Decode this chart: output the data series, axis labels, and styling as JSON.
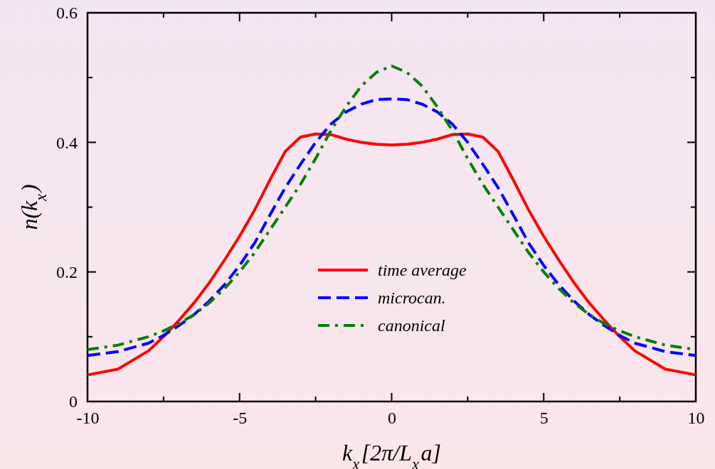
{
  "chart_data": {
    "type": "line",
    "xlabel": "k$_{x}$[2π/L$_{x}$a]",
    "ylabel": "n(k$_{x}$)",
    "xlim": [
      -10,
      10
    ],
    "xticks": [
      -10,
      {
        "value": -7.5,
        "label": null
      },
      -5,
      {
        "value": -2.5,
        "label": null
      },
      0,
      {
        "value": 2.5,
        "label": null
      },
      5,
      {
        "value": 7.5,
        "label": null
      },
      10
    ],
    "ylim": [
      0,
      0.6
    ],
    "yticks": [
      0,
      {
        "value": 0.1,
        "label": null
      },
      0.2,
      {
        "value": 0.3,
        "label": null
      },
      0.4,
      {
        "value": 0.5,
        "label": null
      },
      0.6
    ],
    "grid": false,
    "legend": "bottom",
    "marker": "none",
    "x": [
      -10,
      -9,
      -8,
      -7.5,
      -7,
      -6.5,
      -6,
      -5.5,
      -5,
      -4.5,
      -4,
      -3.5,
      -3,
      -2.5,
      -2,
      -1.5,
      -1,
      -0.5,
      0,
      0.5,
      1,
      1.5,
      2,
      2.5,
      3,
      3.5,
      4,
      4.5,
      5,
      5.5,
      6,
      6.5,
      7,
      7.5,
      8,
      9,
      10
    ],
    "series": [
      {
        "name": "time average",
        "color": "#ff0000",
        "line_style": "solid",
        "values": [
          0.041,
          0.05,
          0.078,
          0.1,
          0.125,
          0.152,
          0.183,
          0.218,
          0.255,
          0.296,
          0.342,
          0.386,
          0.408,
          0.413,
          0.412,
          0.405,
          0.4,
          0.397,
          0.396,
          0.397,
          0.4,
          0.405,
          0.412,
          0.413,
          0.408,
          0.386,
          0.342,
          0.296,
          0.255,
          0.218,
          0.183,
          0.152,
          0.125,
          0.1,
          0.078,
          0.05,
          0.041
        ]
      },
      {
        "name": "microcan.",
        "color": "#0000ff",
        "line_style": "dashed",
        "values": [
          0.071,
          0.077,
          0.09,
          0.102,
          0.117,
          0.134,
          0.155,
          0.18,
          0.21,
          0.245,
          0.288,
          0.33,
          0.366,
          0.4,
          0.428,
          0.447,
          0.459,
          0.466,
          0.467,
          0.466,
          0.459,
          0.447,
          0.428,
          0.4,
          0.366,
          0.33,
          0.288,
          0.245,
          0.21,
          0.18,
          0.155,
          0.134,
          0.117,
          0.102,
          0.09,
          0.077,
          0.071
        ]
      },
      {
        "name": "canonical",
        "color": "#008000",
        "line_style": "dashdot",
        "values": [
          0.08,
          0.087,
          0.1,
          0.109,
          0.12,
          0.134,
          0.152,
          0.174,
          0.2,
          0.23,
          0.265,
          0.3,
          0.335,
          0.375,
          0.418,
          0.455,
          0.487,
          0.508,
          0.518,
          0.508,
          0.487,
          0.455,
          0.418,
          0.375,
          0.335,
          0.3,
          0.265,
          0.23,
          0.2,
          0.174,
          0.152,
          0.134,
          0.12,
          0.109,
          0.1,
          0.087,
          0.08
        ]
      }
    ]
  }
}
